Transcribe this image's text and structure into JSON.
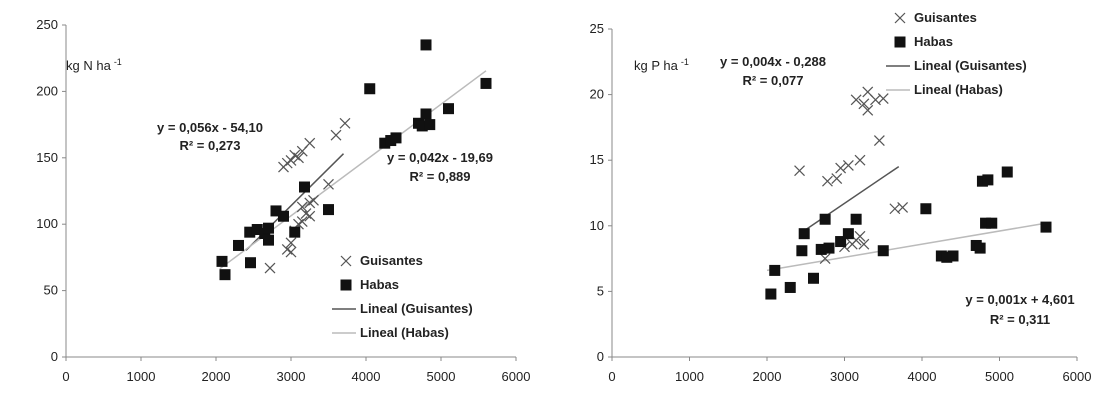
{
  "chart_data": [
    {
      "type": "scatter",
      "unit_label": "kg N ha",
      "unit_superscript": "-1",
      "xlim": [
        0,
        6000
      ],
      "ylim": [
        0,
        250
      ],
      "x_ticks": [
        "0",
        "1000",
        "2000",
        "3000",
        "4000",
        "5000",
        "6000"
      ],
      "y_ticks": [
        "0",
        "50",
        "100",
        "150",
        "200",
        "250"
      ],
      "grid": false,
      "legend_position": "bottom-right",
      "legend": [
        "Guisantes",
        "Habas",
        "Lineal (Guisantes)",
        "Lineal (Habas)"
      ],
      "series": [
        {
          "name": "Guisantes",
          "marker": "x",
          "points": [
            [
              2720,
              67
            ],
            [
              2950,
              81
            ],
            [
              3000,
              79
            ],
            [
              3000,
              86
            ],
            [
              3050,
              95
            ],
            [
              3100,
              100
            ],
            [
              3150,
              102
            ],
            [
              3200,
              108
            ],
            [
              3250,
              106
            ],
            [
              3150,
              113
            ],
            [
              3250,
              116
            ],
            [
              3300,
              118
            ],
            [
              2900,
              143
            ],
            [
              2950,
              146
            ],
            [
              3000,
              148
            ],
            [
              3050,
              152
            ],
            [
              3100,
              150
            ],
            [
              3150,
              155
            ],
            [
              3250,
              161
            ],
            [
              3500,
              130
            ],
            [
              3600,
              167
            ],
            [
              3720,
              176
            ]
          ]
        },
        {
          "name": "Habas",
          "marker": "square",
          "points": [
            [
              2080,
              72
            ],
            [
              2120,
              62
            ],
            [
              2300,
              84
            ],
            [
              2460,
              71
            ],
            [
              2450,
              94
            ],
            [
              2550,
              96
            ],
            [
              2650,
              93
            ],
            [
              2700,
              97
            ],
            [
              2700,
              88
            ],
            [
              2800,
              110
            ],
            [
              2900,
              106
            ],
            [
              3050,
              94
            ],
            [
              3180,
              128
            ],
            [
              3500,
              111
            ],
            [
              4050,
              202
            ],
            [
              4250,
              161
            ],
            [
              4330,
              163
            ],
            [
              4400,
              165
            ],
            [
              4700,
              176
            ],
            [
              4750,
              174
            ],
            [
              4800,
              183
            ],
            [
              4800,
              235
            ],
            [
              4850,
              175
            ],
            [
              5100,
              187
            ],
            [
              5600,
              206
            ]
          ]
        }
      ],
      "trendlines": [
        {
          "name": "Lineal (Guisantes)",
          "slope": 0.056,
          "intercept": -54.1,
          "x_range": [
            2400,
            3700
          ],
          "equation": "y = 0,056x - 54,10",
          "r2": "R² = 0,273"
        },
        {
          "name": "Lineal (Habas)",
          "slope": 0.042,
          "intercept": -19.69,
          "x_range": [
            2050,
            5600
          ],
          "equation": "y = 0,042x - 19,69",
          "r2": "R² = 0,889"
        }
      ]
    },
    {
      "type": "scatter",
      "unit_label": "kg P ha",
      "unit_superscript": "-1",
      "xlim": [
        0,
        6000
      ],
      "ylim": [
        0,
        25
      ],
      "x_ticks": [
        "0",
        "1000",
        "2000",
        "3000",
        "4000",
        "5000",
        "6000"
      ],
      "y_ticks": [
        "0",
        "5",
        "10",
        "15",
        "20",
        "25"
      ],
      "grid": false,
      "legend_position": "top-right",
      "legend": [
        "Guisantes",
        "Habas",
        "Lineal (Guisantes)",
        "Lineal (Habas)"
      ],
      "series": [
        {
          "name": "Guisantes",
          "marker": "x",
          "points": [
            [
              2420,
              14.2
            ],
            [
              2750,
              7.5
            ],
            [
              2780,
              13.4
            ],
            [
              2900,
              13.6
            ],
            [
              2950,
              14.4
            ],
            [
              3050,
              14.6
            ],
            [
              3000,
              8.4
            ],
            [
              3100,
              8.6
            ],
            [
              3150,
              8.9
            ],
            [
              3200,
              9.2
            ],
            [
              3250,
              8.6
            ],
            [
              3200,
              15.0
            ],
            [
              3150,
              19.6
            ],
            [
              3250,
              19.3
            ],
            [
              3300,
              18.8
            ],
            [
              3300,
              20.2
            ],
            [
              3400,
              19.6
            ],
            [
              3500,
              19.7
            ],
            [
              3450,
              16.5
            ],
            [
              3650,
              11.3
            ],
            [
              3750,
              11.4
            ]
          ]
        },
        {
          "name": "Habas",
          "marker": "square",
          "points": [
            [
              2050,
              4.8
            ],
            [
              2100,
              6.6
            ],
            [
              2300,
              5.3
            ],
            [
              2450,
              8.1
            ],
            [
              2480,
              9.4
            ],
            [
              2600,
              6.0
            ],
            [
              2700,
              8.2
            ],
            [
              2750,
              10.5
            ],
            [
              2800,
              8.3
            ],
            [
              2950,
              8.8
            ],
            [
              3050,
              9.4
            ],
            [
              3150,
              10.5
            ],
            [
              3500,
              8.1
            ],
            [
              4050,
              11.3
            ],
            [
              4250,
              7.7
            ],
            [
              4320,
              7.6
            ],
            [
              4400,
              7.7
            ],
            [
              4700,
              8.5
            ],
            [
              4750,
              8.3
            ],
            [
              4780,
              13.4
            ],
            [
              4820,
              10.2
            ],
            [
              4850,
              13.5
            ],
            [
              4900,
              10.2
            ],
            [
              5100,
              14.1
            ],
            [
              5600,
              9.9
            ]
          ]
        }
      ],
      "trendlines": [
        {
          "name": "Lineal (Guisantes)",
          "slope": 0.004,
          "intercept": -0.288,
          "x_range": [
            2450,
            3700
          ],
          "equation": "y = 0,004x - 0,288",
          "r2": "R² = 0,077"
        },
        {
          "name": "Lineal (Habas)",
          "slope": 0.001,
          "intercept": 4.601,
          "x_range": [
            2000,
            5650
          ],
          "equation": "y = 0,001x + 4,601",
          "r2": "R² = 0,311"
        }
      ]
    }
  ],
  "colors": {
    "axis": "#888888",
    "marker": "#111111",
    "trend_guisantes": "#555555",
    "trend_habas": "#bbbbbb",
    "text": "#222222"
  }
}
